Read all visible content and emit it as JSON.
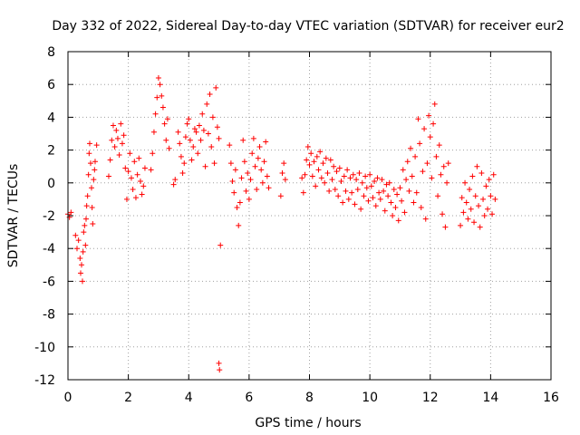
{
  "chart_data": {
    "type": "scatter",
    "title": "Day 332 of 2022, Sidereal Day-to-day VTEC variation (SDTVAR) for receiver eur2",
    "xlabel": "GPS time / hours",
    "ylabel": "SDTVAR / TECUs",
    "xlim": [
      0,
      16
    ],
    "ylim": [
      -12,
      8
    ],
    "xticks": [
      "0",
      "2",
      "4",
      "6",
      "8",
      "10",
      "12",
      "14",
      "16"
    ],
    "yticks": [
      "8",
      "6",
      "4",
      "2",
      "0",
      "-2",
      "-4",
      "-6",
      "-8",
      "-10",
      "-12"
    ],
    "grid": true,
    "marker": "plus",
    "color": "#ff0000",
    "series": [
      {
        "name": "SDTVAR",
        "points": [
          [
            0.0,
            -1.9
          ],
          [
            0.05,
            -2.1
          ],
          [
            0.1,
            -1.8
          ],
          [
            0.25,
            -3.2
          ],
          [
            0.3,
            -4.0
          ],
          [
            0.35,
            -3.5
          ],
          [
            0.4,
            -4.6
          ],
          [
            0.42,
            -5.5
          ],
          [
            0.45,
            -5.0
          ],
          [
            0.48,
            -6.0
          ],
          [
            0.5,
            -4.2
          ],
          [
            0.52,
            -3.0
          ],
          [
            0.55,
            -2.6
          ],
          [
            0.58,
            -3.8
          ],
          [
            0.6,
            -2.2
          ],
          [
            0.62,
            -1.4
          ],
          [
            0.65,
            -0.8
          ],
          [
            0.68,
            0.5
          ],
          [
            0.7,
            1.8
          ],
          [
            0.72,
            2.4
          ],
          [
            0.75,
            1.2
          ],
          [
            0.78,
            -0.3
          ],
          [
            0.8,
            -1.5
          ],
          [
            0.82,
            -2.5
          ],
          [
            0.85,
            0.2
          ],
          [
            0.88,
            0.8
          ],
          [
            0.9,
            1.3
          ],
          [
            0.95,
            2.3
          ],
          [
            1.35,
            0.4
          ],
          [
            1.4,
            1.4
          ],
          [
            1.45,
            2.6
          ],
          [
            1.5,
            3.5
          ],
          [
            1.55,
            2.2
          ],
          [
            1.6,
            3.2
          ],
          [
            1.65,
            2.7
          ],
          [
            1.7,
            1.7
          ],
          [
            1.75,
            3.6
          ],
          [
            1.8,
            2.4
          ],
          [
            1.85,
            2.9
          ],
          [
            1.9,
            0.9
          ],
          [
            1.95,
            -1.0
          ],
          [
            2.0,
            0.7
          ],
          [
            2.05,
            1.8
          ],
          [
            2.1,
            0.3
          ],
          [
            2.15,
            -0.4
          ],
          [
            2.2,
            1.3
          ],
          [
            2.25,
            -0.9
          ],
          [
            2.3,
            0.5
          ],
          [
            2.35,
            1.5
          ],
          [
            2.4,
            0.1
          ],
          [
            2.45,
            -0.7
          ],
          [
            2.5,
            -0.2
          ],
          [
            2.55,
            0.9
          ],
          [
            2.75,
            0.8
          ],
          [
            2.8,
            1.8
          ],
          [
            2.85,
            3.1
          ],
          [
            2.9,
            4.2
          ],
          [
            2.95,
            5.2
          ],
          [
            3.0,
            6.4
          ],
          [
            3.05,
            6.0
          ],
          [
            3.1,
            5.3
          ],
          [
            3.15,
            4.6
          ],
          [
            3.2,
            3.6
          ],
          [
            3.25,
            2.6
          ],
          [
            3.3,
            3.9
          ],
          [
            3.35,
            2.1
          ],
          [
            3.5,
            -0.1
          ],
          [
            3.55,
            0.2
          ],
          [
            3.65,
            3.1
          ],
          [
            3.7,
            2.4
          ],
          [
            3.75,
            1.6
          ],
          [
            3.8,
            0.6
          ],
          [
            3.85,
            1.2
          ],
          [
            3.9,
            2.8
          ],
          [
            3.95,
            3.6
          ],
          [
            4.0,
            3.9
          ],
          [
            4.05,
            2.6
          ],
          [
            4.1,
            1.4
          ],
          [
            4.15,
            2.2
          ],
          [
            4.2,
            3.3
          ],
          [
            4.25,
            3.1
          ],
          [
            4.3,
            1.8
          ],
          [
            4.35,
            3.5
          ],
          [
            4.4,
            2.6
          ],
          [
            4.45,
            4.2
          ],
          [
            4.5,
            3.2
          ],
          [
            4.55,
            1.0
          ],
          [
            4.6,
            4.8
          ],
          [
            4.65,
            3.0
          ],
          [
            4.7,
            5.4
          ],
          [
            4.75,
            2.2
          ],
          [
            4.8,
            4.0
          ],
          [
            4.85,
            1.2
          ],
          [
            4.9,
            5.8
          ],
          [
            4.95,
            3.4
          ],
          [
            5.0,
            2.7
          ],
          [
            5.05,
            -3.8
          ],
          [
            5.0,
            -11.0
          ],
          [
            5.02,
            -11.4
          ],
          [
            5.35,
            2.3
          ],
          [
            5.4,
            1.2
          ],
          [
            5.45,
            0.1
          ],
          [
            5.5,
            -0.6
          ],
          [
            5.55,
            0.8
          ],
          [
            5.6,
            -1.5
          ],
          [
            5.65,
            -2.6
          ],
          [
            5.7,
            -1.2
          ],
          [
            5.75,
            0.3
          ],
          [
            5.8,
            2.6
          ],
          [
            5.85,
            1.3
          ],
          [
            5.9,
            -0.5
          ],
          [
            5.95,
            0.6
          ],
          [
            6.0,
            -1.0
          ],
          [
            6.05,
            0.2
          ],
          [
            6.1,
            1.8
          ],
          [
            6.15,
            2.7
          ],
          [
            6.2,
            1.0
          ],
          [
            6.25,
            -0.4
          ],
          [
            6.3,
            1.5
          ],
          [
            6.35,
            2.2
          ],
          [
            6.4,
            0.8
          ],
          [
            6.45,
            0.0
          ],
          [
            6.5,
            1.3
          ],
          [
            6.55,
            2.5
          ],
          [
            6.6,
            0.4
          ],
          [
            6.65,
            -0.3
          ],
          [
            7.05,
            -0.8
          ],
          [
            7.1,
            0.6
          ],
          [
            7.15,
            1.2
          ],
          [
            7.2,
            0.2
          ],
          [
            7.75,
            0.3
          ],
          [
            7.8,
            -0.6
          ],
          [
            7.85,
            0.5
          ],
          [
            7.9,
            1.4
          ],
          [
            7.95,
            2.2
          ],
          [
            8.0,
            1.1
          ],
          [
            8.05,
            1.8
          ],
          [
            8.1,
            0.4
          ],
          [
            8.15,
            1.3
          ],
          [
            8.2,
            -0.2
          ],
          [
            8.25,
            1.6
          ],
          [
            8.3,
            0.8
          ],
          [
            8.35,
            1.9
          ],
          [
            8.4,
            0.3
          ],
          [
            8.45,
            1.2
          ],
          [
            8.5,
            0.0
          ],
          [
            8.55,
            1.5
          ],
          [
            8.6,
            0.6
          ],
          [
            8.65,
            -0.5
          ],
          [
            8.7,
            1.4
          ],
          [
            8.75,
            0.2
          ],
          [
            8.8,
            1.0
          ],
          [
            8.85,
            -0.4
          ],
          [
            8.9,
            0.7
          ],
          [
            8.95,
            -0.8
          ],
          [
            9.0,
            0.9
          ],
          [
            9.05,
            0.1
          ],
          [
            9.1,
            -1.2
          ],
          [
            9.15,
            0.4
          ],
          [
            9.2,
            -0.5
          ],
          [
            9.25,
            0.8
          ],
          [
            9.3,
            -1.0
          ],
          [
            9.35,
            0.3
          ],
          [
            9.4,
            -0.6
          ],
          [
            9.45,
            0.5
          ],
          [
            9.5,
            -1.3
          ],
          [
            9.55,
            0.2
          ],
          [
            9.6,
            -0.4
          ],
          [
            9.65,
            0.6
          ],
          [
            9.7,
            -1.6
          ],
          [
            9.75,
            0.0
          ],
          [
            9.8,
            -0.8
          ],
          [
            9.85,
            0.4
          ],
          [
            9.9,
            -0.3
          ],
          [
            9.95,
            -1.1
          ],
          [
            10.0,
            0.5
          ],
          [
            10.05,
            -0.2
          ],
          [
            10.1,
            -0.9
          ],
          [
            10.15,
            0.1
          ],
          [
            10.2,
            -1.4
          ],
          [
            10.25,
            0.3
          ],
          [
            10.3,
            -0.6
          ],
          [
            10.35,
            -1.0
          ],
          [
            10.4,
            0.2
          ],
          [
            10.45,
            -0.5
          ],
          [
            10.5,
            -1.7
          ],
          [
            10.55,
            -0.1
          ],
          [
            10.6,
            -0.8
          ],
          [
            10.65,
            0.0
          ],
          [
            10.7,
            -1.2
          ],
          [
            10.75,
            -2.0
          ],
          [
            10.8,
            -0.4
          ],
          [
            10.85,
            -1.5
          ],
          [
            10.9,
            -0.7
          ],
          [
            10.95,
            -2.3
          ],
          [
            11.0,
            -0.3
          ],
          [
            11.05,
            -1.1
          ],
          [
            11.1,
            0.8
          ],
          [
            11.15,
            -1.8
          ],
          [
            11.2,
            0.2
          ],
          [
            11.25,
            1.3
          ],
          [
            11.3,
            -0.5
          ],
          [
            11.35,
            2.1
          ],
          [
            11.4,
            0.4
          ],
          [
            11.45,
            -1.2
          ],
          [
            11.5,
            1.6
          ],
          [
            11.55,
            -0.6
          ],
          [
            11.6,
            3.9
          ],
          [
            11.65,
            2.4
          ],
          [
            11.7,
            -1.5
          ],
          [
            11.75,
            0.7
          ],
          [
            11.8,
            3.3
          ],
          [
            11.85,
            -2.2
          ],
          [
            11.9,
            1.2
          ],
          [
            11.95,
            4.1
          ],
          [
            12.0,
            2.8
          ],
          [
            12.05,
            0.3
          ],
          [
            12.1,
            3.6
          ],
          [
            12.15,
            4.8
          ],
          [
            12.2,
            1.6
          ],
          [
            12.25,
            -0.8
          ],
          [
            12.3,
            2.3
          ],
          [
            12.35,
            0.5
          ],
          [
            12.4,
            -1.9
          ],
          [
            12.45,
            1.0
          ],
          [
            12.5,
            -2.7
          ],
          [
            12.55,
            0.0
          ],
          [
            12.6,
            1.2
          ],
          [
            13.0,
            -2.6
          ],
          [
            13.05,
            -0.9
          ],
          [
            13.1,
            -1.8
          ],
          [
            13.15,
            0.0
          ],
          [
            13.2,
            -1.2
          ],
          [
            13.25,
            -2.2
          ],
          [
            13.3,
            -0.4
          ],
          [
            13.35,
            -1.6
          ],
          [
            13.4,
            0.4
          ],
          [
            13.45,
            -2.4
          ],
          [
            13.5,
            -0.8
          ],
          [
            13.55,
            1.0
          ],
          [
            13.6,
            -1.4
          ],
          [
            13.65,
            -2.7
          ],
          [
            13.7,
            0.6
          ],
          [
            13.75,
            -1.0
          ],
          [
            13.8,
            -2.0
          ],
          [
            13.85,
            -0.2
          ],
          [
            13.9,
            -1.6
          ],
          [
            13.95,
            0.2
          ],
          [
            14.0,
            -0.8
          ],
          [
            14.05,
            -1.9
          ],
          [
            14.1,
            0.5
          ],
          [
            14.15,
            -1.0
          ]
        ]
      }
    ]
  }
}
